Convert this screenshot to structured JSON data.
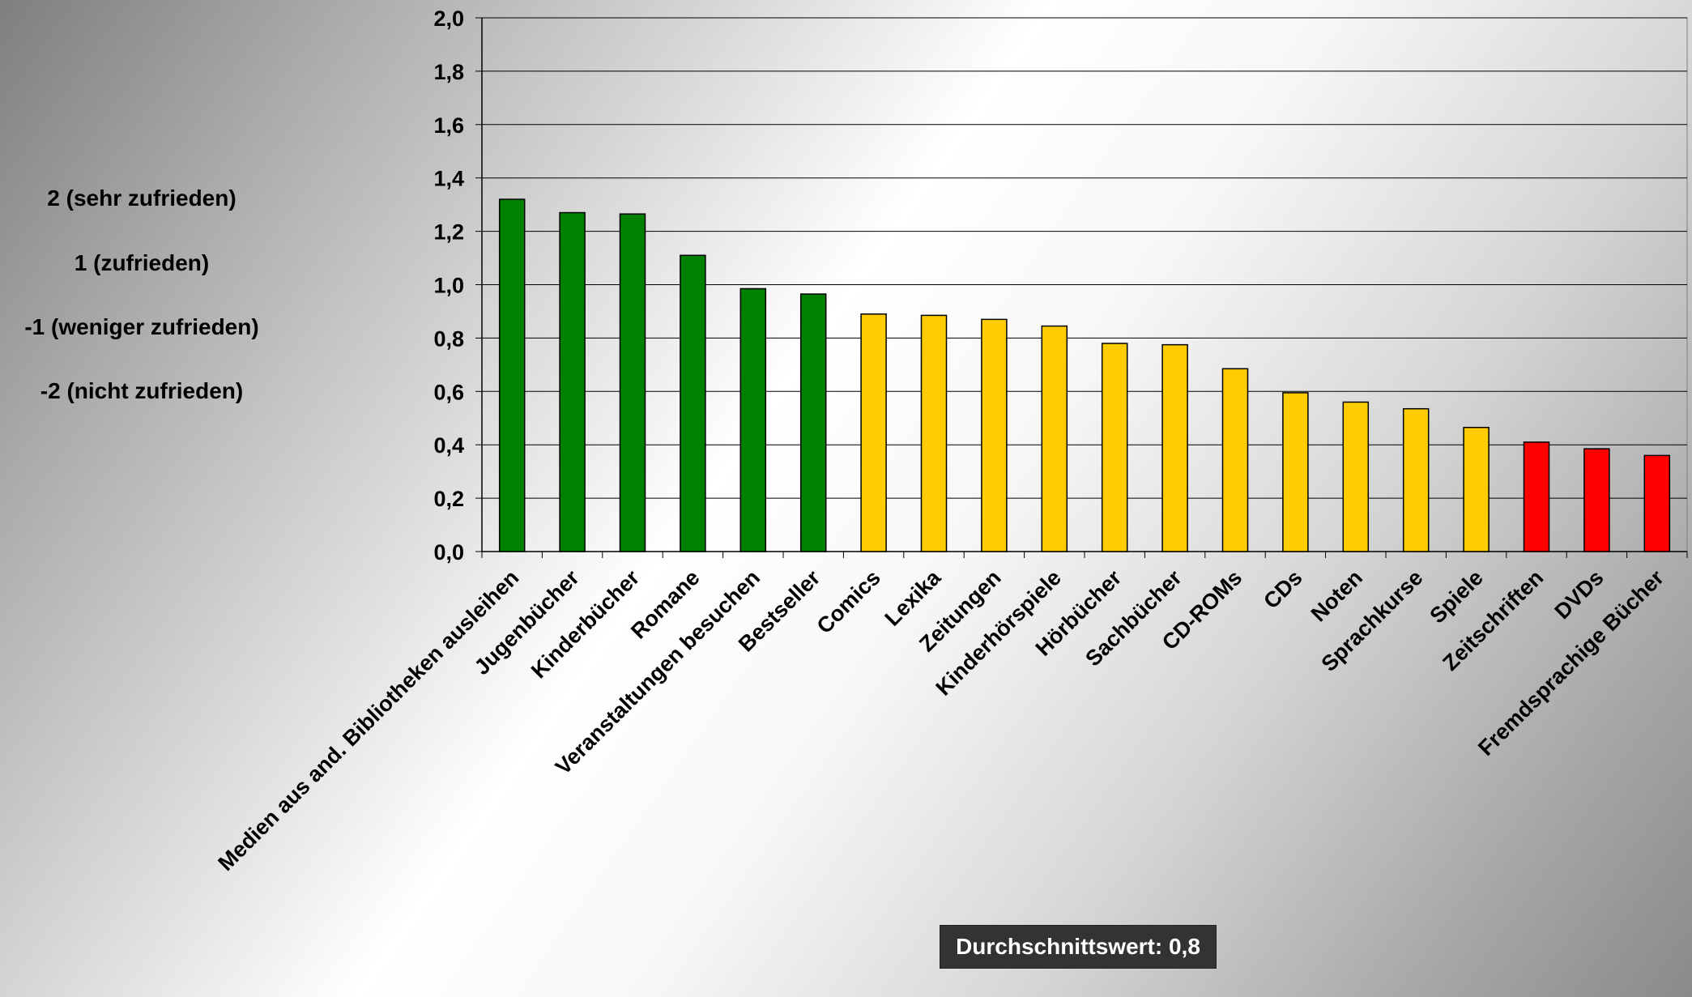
{
  "scale_legend": {
    "items": [
      "2 (sehr zufrieden)",
      "1 (zufrieden)",
      "-1 (weniger zufrieden)",
      "-2 (nicht zufrieden)"
    ]
  },
  "average_label": "Durchschnittswert: 0,8",
  "chart_data": {
    "type": "bar",
    "title": "",
    "xlabel": "",
    "ylabel": "",
    "ylim": [
      0,
      2.0
    ],
    "ytick_step": 0.2,
    "grid": true,
    "categories": [
      "Medien aus and. Bibliotheken ausleihen",
      "Jugenbücher",
      "Kinderbücher",
      "Romane",
      "Veranstaltungen besuchen",
      "Bestseller",
      "Comics",
      "Lexika",
      "Zeitungen",
      "Kinderhörspiele",
      "Hörbücher",
      "Sachbücher",
      "CD-ROMs",
      "CDs",
      "Noten",
      "Sprachkurse",
      "Spiele",
      "Zeitschriften",
      "DVDs",
      "Fremdsprachige Bücher"
    ],
    "values": [
      1.32,
      1.27,
      1.265,
      1.11,
      0.985,
      0.965,
      0.89,
      0.885,
      0.87,
      0.845,
      0.78,
      0.775,
      0.685,
      0.595,
      0.56,
      0.535,
      0.465,
      0.41,
      0.385,
      0.36
    ],
    "bar_colors": [
      "#008000",
      "#008000",
      "#008000",
      "#008000",
      "#008000",
      "#008000",
      "#ffcc00",
      "#ffcc00",
      "#ffcc00",
      "#ffcc00",
      "#ffcc00",
      "#ffcc00",
      "#ffcc00",
      "#ffcc00",
      "#ffcc00",
      "#ffcc00",
      "#ffcc00",
      "#ff0000",
      "#ff0000",
      "#ff0000"
    ]
  }
}
